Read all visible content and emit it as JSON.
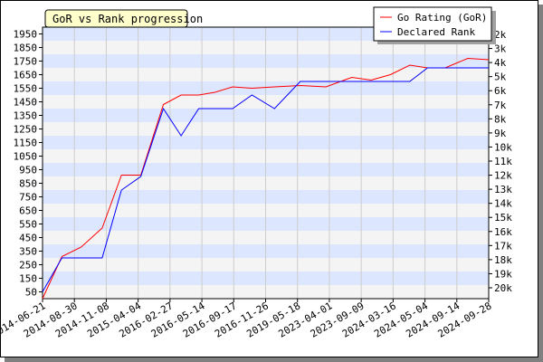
{
  "chart_data": {
    "type": "line",
    "title": "GoR vs Rank progression",
    "x": [
      "2014-06-21",
      "2014-08-30",
      "2014-11-08",
      "2015-04-04",
      "2016-02-27",
      "2016-05-14",
      "2016-09-17",
      "2016-11-26",
      "2019-05-18",
      "2023-04-01",
      "2023-09-09",
      "2024-03-16",
      "2024-05-04",
      "2024-09-14",
      "2024-09-28"
    ],
    "y_left": {
      "ticks": [
        50,
        150,
        250,
        350,
        450,
        550,
        650,
        750,
        850,
        950,
        1050,
        1150,
        1250,
        1350,
        1450,
        1550,
        1650,
        1750,
        1850,
        1950
      ],
      "range": [
        0,
        2000
      ]
    },
    "y_right": {
      "ticks": [
        "20k",
        "19k",
        "18k",
        "17k",
        "16k",
        "15k",
        "14k",
        "13k",
        "12k",
        "11k",
        "10k",
        "9k",
        "8k",
        "7k",
        "6k",
        "5k",
        "4k",
        "3k",
        "2k"
      ]
    },
    "series": [
      {
        "name": "Go Rating (GoR)",
        "color": "#ff0000",
        "points": [
          [
            0,
            0
          ],
          [
            0.6,
            310
          ],
          [
            1.2,
            380
          ],
          [
            1.85,
            520
          ],
          [
            2.45,
            910
          ],
          [
            3.05,
            910
          ],
          [
            3.75,
            1430
          ],
          [
            4.3,
            1500
          ],
          [
            4.85,
            1500
          ],
          [
            5.35,
            1520
          ],
          [
            5.9,
            1560
          ],
          [
            6.5,
            1550
          ],
          [
            7.2,
            1560
          ],
          [
            8.0,
            1570
          ],
          [
            8.8,
            1560
          ],
          [
            9.6,
            1630
          ],
          [
            10.2,
            1610
          ],
          [
            10.8,
            1650
          ],
          [
            11.4,
            1720
          ],
          [
            11.95,
            1700
          ],
          [
            12.5,
            1700
          ],
          [
            13.2,
            1770
          ],
          [
            13.85,
            1760
          ]
        ]
      },
      {
        "name": "Declared Rank",
        "color": "#0000ff",
        "points": [
          [
            0,
            50
          ],
          [
            0.6,
            300
          ],
          [
            1.2,
            300
          ],
          [
            1.85,
            300
          ],
          [
            2.45,
            800
          ],
          [
            3.05,
            900
          ],
          [
            3.75,
            1400
          ],
          [
            4.3,
            1200
          ],
          [
            4.85,
            1400
          ],
          [
            5.35,
            1400
          ],
          [
            5.9,
            1400
          ],
          [
            6.5,
            1500
          ],
          [
            7.2,
            1400
          ],
          [
            8.0,
            1600
          ],
          [
            8.8,
            1600
          ],
          [
            9.6,
            1600
          ],
          [
            10.2,
            1600
          ],
          [
            10.8,
            1600
          ],
          [
            11.4,
            1600
          ],
          [
            11.95,
            1700
          ],
          [
            12.5,
            1700
          ],
          [
            13.2,
            1700
          ],
          [
            13.85,
            1700
          ]
        ]
      }
    ],
    "legend_position": "top-right",
    "grid": true
  }
}
